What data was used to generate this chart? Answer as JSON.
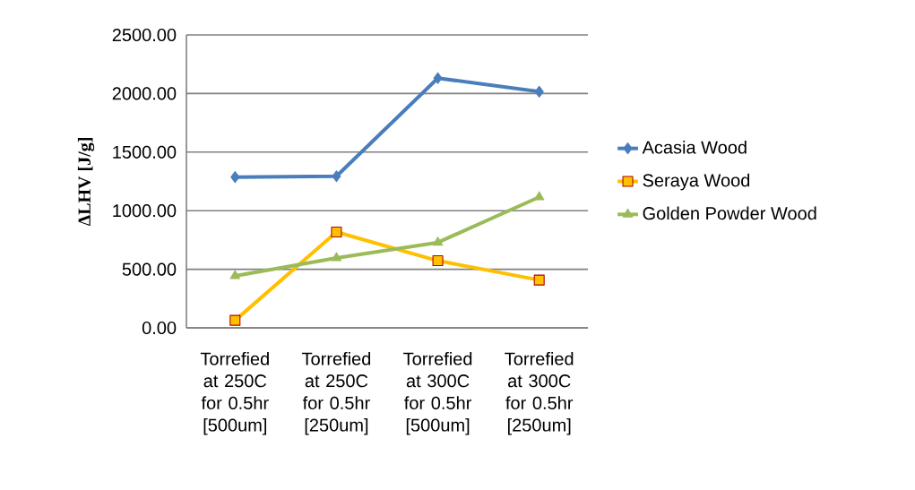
{
  "chart_data": {
    "type": "line",
    "ylabel": "ΔLHV [J/g]",
    "categories": [
      "Torrefied at 250C for 0.5hr [500um]",
      "Torrefied at 250C for 0.5hr [250um]",
      "Torrefied at 300C for 0.5hr [500um]",
      "Torrefied at 300C for 0.5hr [250um]"
    ],
    "series": [
      {
        "name": "Acasia Wood",
        "color": "#4a7ebb",
        "marker": "diamond",
        "values": [
          1287,
          1294,
          2131,
          2016
        ]
      },
      {
        "name": "Seraya Wood",
        "color": "#ffc000",
        "marker": "square",
        "values": [
          64,
          818,
          573,
          408
        ]
      },
      {
        "name": "Golden Powder Wood",
        "color": "#9bbb59",
        "marker": "triangle",
        "values": [
          443,
          596,
          729,
          1116
        ]
      }
    ],
    "ylim": [
      0,
      2500
    ],
    "yticks": [
      {
        "value": 0,
        "label": "0.00"
      },
      {
        "value": 500,
        "label": "500.00"
      },
      {
        "value": 1000,
        "label": "1000.00"
      },
      {
        "value": 1500,
        "label": "1500.00"
      },
      {
        "value": 2000,
        "label": "2000.00"
      },
      {
        "value": 2500,
        "label": "2500.00"
      }
    ],
    "grid": "y",
    "legend": "right",
    "line_style": "solid"
  }
}
